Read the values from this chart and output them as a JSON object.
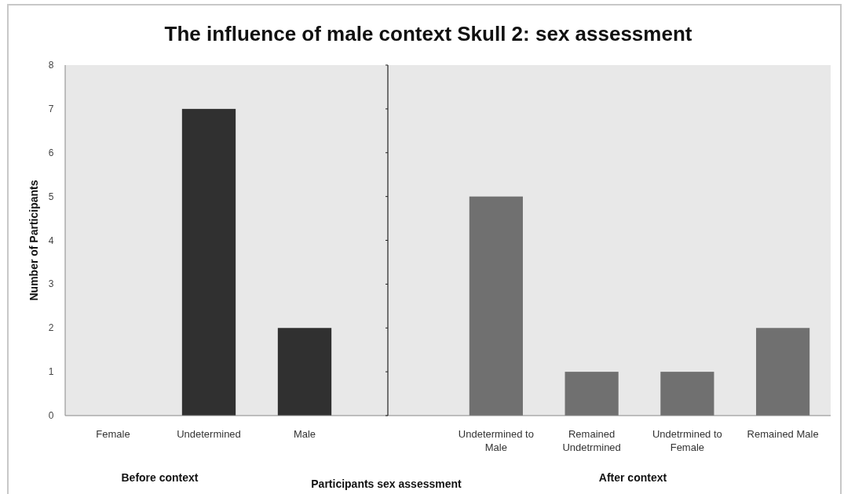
{
  "chart_data": [
    {
      "type": "bar",
      "title": "The influence of male context Skull 2: sex assessment",
      "xlabel": "Before context",
      "ylabel": "Number of Participants",
      "categories": [
        "Female",
        "Undetermined",
        "Male"
      ],
      "values": [
        0,
        7,
        2
      ],
      "color": "#303030",
      "ylim": [
        0,
        8
      ],
      "yticks": [
        0,
        1,
        2,
        3,
        4,
        5,
        6,
        7,
        8
      ],
      "annotations": [
        "Participants sex assessment"
      ]
    },
    {
      "type": "bar",
      "xlabel": "After context",
      "categories": [
        "Undetermined to Male",
        "Remained Undetrmined",
        "Undetrmined to Female",
        "Remained Male"
      ],
      "values": [
        5,
        1,
        1,
        2
      ],
      "color": "#707070",
      "ylim": [
        0,
        8
      ],
      "yticks": [
        0,
        1,
        2,
        3,
        4,
        5,
        6,
        7,
        8
      ],
      "tick_labels": "x"
    }
  ]
}
